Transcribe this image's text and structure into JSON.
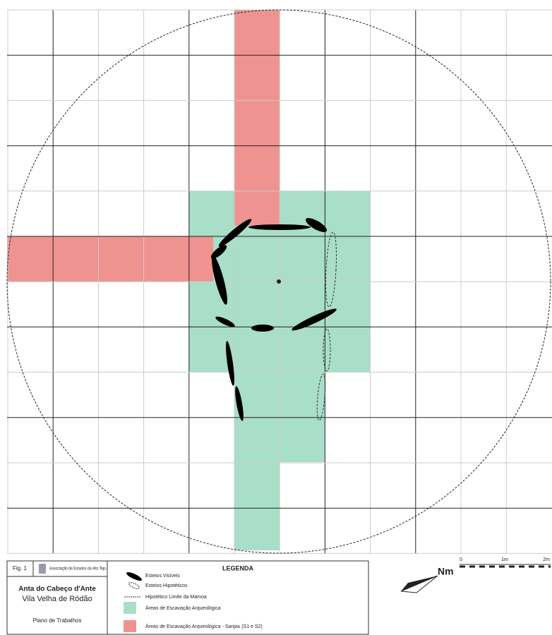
{
  "title_block": {
    "fig": "Fig. 1",
    "org": "Associação de Estudos do Alto Tejo",
    "site": "Anta do Cabeço d'Ante",
    "place": "Vila Velha de Ródão",
    "plan": "Plano de Trabalhos"
  },
  "legend": {
    "title": "LEGENDA",
    "items": [
      "Esteios Visíveis",
      "Esteios Hipotéticos",
      "Hipotético Limite da Mamoa",
      "Áreas de Escavação Arqueológica",
      "Áreas de Escavação Arqueológica - Sanjas (S1 e S2)"
    ]
  },
  "scale": {
    "labels": [
      "0",
      "1m",
      "2m"
    ]
  },
  "north": "Nm"
}
